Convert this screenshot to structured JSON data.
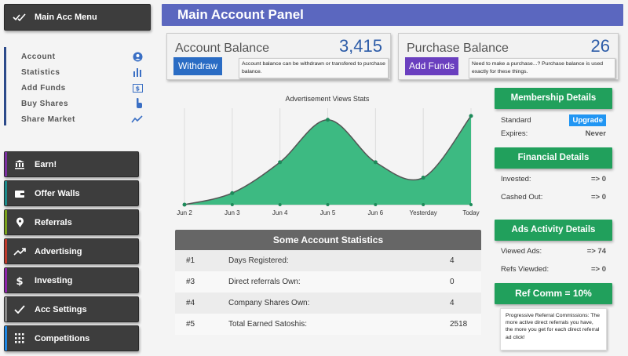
{
  "top_menu": {
    "label": "Main Acc Menu",
    "icon": "double-check-icon"
  },
  "side_nav": [
    {
      "label": "Account",
      "icon": "user-circle-icon"
    },
    {
      "label": "Statistics",
      "icon": "bar-chart-icon"
    },
    {
      "label": "Add Funds",
      "icon": "dollar-icon"
    },
    {
      "label": "Buy Shares",
      "icon": "pointer-hand-icon"
    },
    {
      "label": "Share Market",
      "icon": "trend-icon"
    }
  ],
  "menu_buttons": [
    {
      "label": "Earn!",
      "icon": "bank-icon",
      "accent": "#7b2fa0"
    },
    {
      "label": "Offer Walls",
      "icon": "wallet-icon",
      "accent": "#1b8c8c"
    },
    {
      "label": "Referrals",
      "icon": "map-pin-icon",
      "accent": "#7aa21b"
    },
    {
      "label": "Advertising",
      "icon": "trending-up-icon",
      "accent": "#c0392b"
    },
    {
      "label": "Investing",
      "icon": "dollar-icon",
      "accent": "#8e24aa"
    },
    {
      "label": "Acc Settings",
      "icon": "check-icon",
      "accent": "#888888"
    },
    {
      "label": "Competitions",
      "icon": "dots-grid-icon",
      "accent": "#1e88e5"
    }
  ],
  "header": {
    "title": "Main Account Panel"
  },
  "account_balance": {
    "title": "Account Balance",
    "value": "3,415",
    "button": "Withdraw",
    "note": "Account balance can be withdrawn or transfered to purchase balance."
  },
  "purchase_balance": {
    "title": "Purchase Balance",
    "value": "26",
    "button": "Add Funds",
    "note": "Need to make a purchase...? Purchase balance is used exactly for these things."
  },
  "chart_data": {
    "type": "area",
    "title": "Advertisement Views Stats",
    "categories": [
      "Jun 2",
      "Jun 3",
      "Jun 4",
      "Jun 5",
      "Jun 6",
      "Yesterday",
      "Today"
    ],
    "values": [
      0,
      3,
      11,
      22,
      11,
      7,
      23
    ],
    "ylim": [
      0,
      25
    ],
    "fill": "#3dba82",
    "grid": true
  },
  "stats": {
    "title": "Some Account Statistics",
    "rows": [
      {
        "num": "#1",
        "label": "Days Registered:",
        "value": "4"
      },
      {
        "num": "#3",
        "label": "Direct referrals Own:",
        "value": "0"
      },
      {
        "num": "#4",
        "label": "Company Shares Own:",
        "value": "4"
      },
      {
        "num": "#5",
        "label": "Total Earned Satoshis:",
        "value": "2518"
      }
    ]
  },
  "membership": {
    "title": "Membership Details",
    "level": "Standard",
    "upgrade": "Upgrade",
    "expires_label": "Expires:",
    "expires_value": "Never"
  },
  "financial": {
    "title": "Financial Details",
    "invested_label": "Invested:",
    "invested_value": "=> 0",
    "cashed_label": "Cashed Out:",
    "cashed_value": "=> 0"
  },
  "ads_activity": {
    "title": "Ads Activity Details",
    "viewed_label": "Viewed Ads:",
    "viewed_value": "=> 74",
    "refs_label": "Refs Viewded:",
    "refs_value": "=> 0"
  },
  "ref_comm": {
    "title": "Ref Comm = 10%",
    "note": "Progressive Referral Commissions: The more active direct referrals you have, the more you get for each direct referral ad click!"
  }
}
